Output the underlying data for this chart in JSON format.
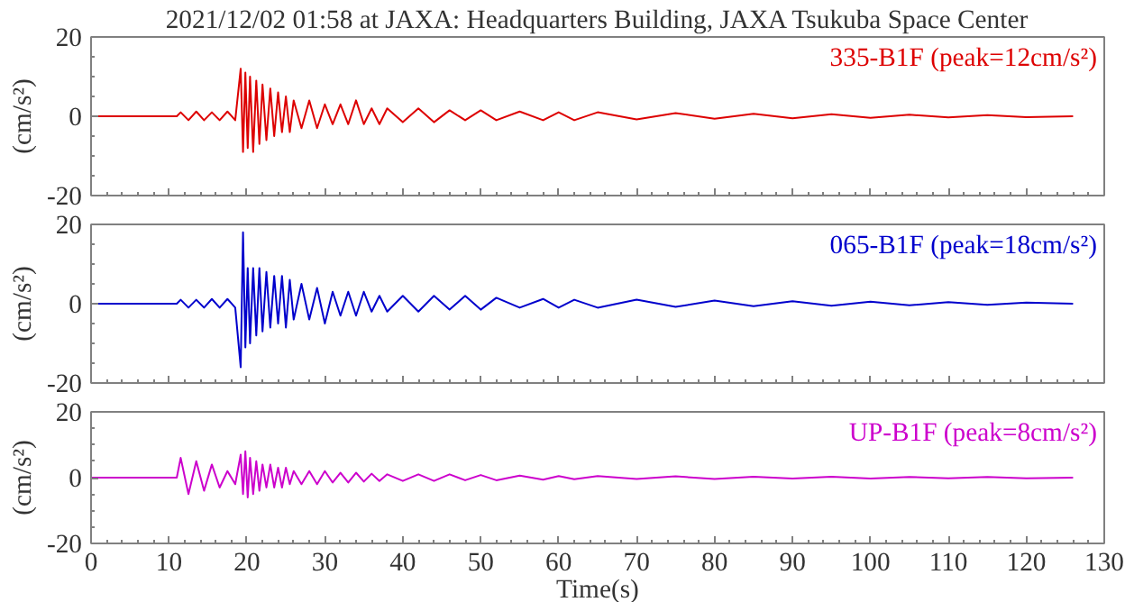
{
  "chart_data": [
    {
      "type": "line",
      "title": "2021/12/02 01:58 at JAXA: Headquarters Building, JAXA Tsukuba Space Center",
      "ylabel": "(cm/s²)",
      "xlim": [
        0,
        130
      ],
      "xticks": [
        0,
        10,
        20,
        30,
        40,
        50,
        60,
        70,
        80,
        90,
        100,
        110,
        120,
        130
      ],
      "ylim": [
        -20,
        20
      ],
      "yticks": [
        -20,
        0,
        20
      ],
      "tick_labels": "y",
      "grid": false,
      "x": [
        0,
        11,
        11.5,
        12.5,
        13.5,
        14.5,
        15.5,
        16.5,
        17.5,
        18.5,
        19.2,
        19.5,
        19.8,
        20.1,
        20.4,
        20.8,
        21.2,
        21.6,
        22,
        22.5,
        23,
        23.5,
        24,
        24.5,
        25,
        25.5,
        26,
        27,
        28,
        29,
        30,
        31,
        32,
        33,
        34,
        35,
        36,
        37,
        38,
        40,
        42,
        44,
        46,
        48,
        50,
        52,
        55,
        58,
        60,
        62,
        65,
        70,
        75,
        80,
        85,
        90,
        95,
        100,
        105,
        110,
        115,
        120,
        126
      ],
      "series": [
        {
          "name": "335-B1F (peak=12cm/s²)",
          "color": "#dd0000",
          "values": [
            0,
            0,
            1,
            -1,
            1.2,
            -1,
            1,
            -1,
            1.2,
            -1,
            12,
            -9,
            11,
            -8,
            10,
            -9,
            9,
            -7,
            8,
            -6,
            7,
            -5,
            6,
            -4,
            5,
            -4,
            4,
            -3,
            4,
            -3,
            3,
            -2,
            3,
            -2,
            4,
            -2,
            2,
            -2,
            2,
            -1.5,
            2,
            -1.5,
            1.5,
            -1,
            1.5,
            -1,
            1.2,
            -1,
            1,
            -1,
            1,
            -0.8,
            0.8,
            -0.6,
            0.6,
            -0.5,
            0.5,
            -0.4,
            0.4,
            -0.3,
            0.3,
            -0.2,
            0
          ]
        }
      ]
    },
    {
      "type": "line",
      "ylabel": "(cm/s²)",
      "xlim": [
        0,
        130
      ],
      "xticks": [
        0,
        10,
        20,
        30,
        40,
        50,
        60,
        70,
        80,
        90,
        100,
        110,
        120,
        130
      ],
      "ylim": [
        -20,
        20
      ],
      "yticks": [
        -20,
        0,
        20
      ],
      "tick_labels": "y",
      "grid": false,
      "x": [
        0,
        11,
        11.5,
        12.5,
        13.5,
        14.5,
        15.5,
        16.5,
        17.5,
        18.5,
        19.2,
        19.5,
        19.8,
        20.1,
        20.4,
        20.8,
        21.2,
        21.6,
        22,
        22.5,
        23,
        23.5,
        24,
        24.5,
        25,
        25.5,
        26,
        27,
        28,
        29,
        30,
        31,
        32,
        33,
        34,
        35,
        36,
        37,
        38,
        40,
        42,
        44,
        46,
        48,
        50,
        52,
        55,
        58,
        60,
        62,
        65,
        70,
        75,
        80,
        85,
        90,
        95,
        100,
        105,
        110,
        115,
        120,
        126
      ],
      "series": [
        {
          "name": "065-B1F (peak=18cm/s²)",
          "color": "#0000cc",
          "values": [
            0,
            0,
            1,
            -1,
            1,
            -1,
            1.2,
            -1,
            1.2,
            -1,
            -16,
            18,
            -11,
            9,
            -10,
            9,
            -8,
            9,
            -7,
            8,
            -6,
            7,
            -5,
            7,
            -6,
            6,
            -4,
            5,
            -4,
            4,
            -5,
            3,
            -3,
            3,
            -3,
            3,
            -2,
            2,
            -2,
            2,
            -2,
            2,
            -1.5,
            2,
            -1.5,
            1.5,
            -1,
            1.2,
            -1,
            1,
            -1,
            1,
            -0.8,
            0.8,
            -0.6,
            0.6,
            -0.5,
            0.5,
            -0.4,
            0.4,
            -0.3,
            0.3,
            0
          ]
        }
      ]
    },
    {
      "type": "line",
      "ylabel": "(cm/s²)",
      "xlabel": "Time(s)",
      "xlim": [
        0,
        130
      ],
      "xticks": [
        0,
        10,
        20,
        30,
        40,
        50,
        60,
        70,
        80,
        90,
        100,
        110,
        120,
        130
      ],
      "ylim": [
        -20,
        20
      ],
      "yticks": [
        -20,
        0,
        20
      ],
      "grid": false,
      "x": [
        0,
        11,
        11.5,
        12.5,
        13.5,
        14.5,
        15.5,
        16.5,
        17.5,
        18.5,
        19.2,
        19.5,
        19.8,
        20.1,
        20.4,
        20.8,
        21.2,
        21.6,
        22,
        22.5,
        23,
        23.5,
        24,
        24.5,
        25,
        25.5,
        26,
        27,
        28,
        29,
        30,
        31,
        32,
        33,
        34,
        35,
        36,
        37,
        38,
        40,
        42,
        44,
        46,
        48,
        50,
        52,
        55,
        58,
        60,
        62,
        65,
        70,
        75,
        80,
        85,
        90,
        95,
        100,
        105,
        110,
        115,
        120,
        126
      ],
      "series": [
        {
          "name": "UP-B1F (peak=8cm/s²)",
          "color": "#cc00cc",
          "values": [
            0,
            0,
            6,
            -5,
            5,
            -4,
            4,
            -3,
            2,
            -2,
            7,
            -5,
            8,
            -6,
            6,
            -5,
            5,
            -4,
            4,
            -3,
            4,
            -3,
            3,
            -3,
            3,
            -2,
            2,
            -2,
            2,
            -2,
            2,
            -1.5,
            1.5,
            -1.5,
            1.5,
            -1.2,
            1.2,
            -1,
            1,
            -1,
            1,
            -1,
            1,
            -0.8,
            0.8,
            -0.8,
            0.6,
            -0.6,
            0.5,
            -0.5,
            0.5,
            -0.4,
            0.4,
            -0.4,
            0.3,
            -0.3,
            0.3,
            -0.3,
            0.2,
            -0.2,
            0.2,
            -0.2,
            0
          ]
        }
      ]
    }
  ]
}
